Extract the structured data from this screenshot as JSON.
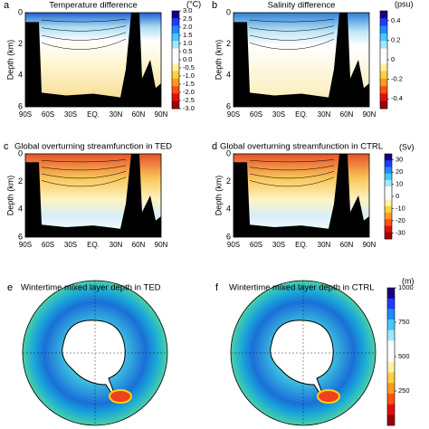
{
  "chart_data": [
    {
      "type": "section",
      "panel": "a",
      "title": "Temperature difference",
      "ylabel": "Depth (km)",
      "categories": [
        "90S",
        "60S",
        "30S",
        "EQ.",
        "30N",
        "60N",
        "90N"
      ],
      "ylim": [
        6,
        0
      ],
      "yticks": [
        0,
        2,
        4,
        6
      ],
      "colorbar": {
        "units": "(°C)",
        "lim": [
          -3,
          3
        ],
        "ticks": [
          {
            "value": 3,
            "label": "3.0"
          },
          {
            "value": 2.5,
            "label": "2.5"
          },
          {
            "value": 2,
            "label": "2.0"
          },
          {
            "value": 1.5,
            "label": "1.5"
          },
          {
            "value": 1,
            "label": "1.0"
          },
          {
            "value": 0.5,
            "label": "0.5"
          },
          {
            "value": 0,
            "label": "0.0"
          },
          {
            "value": -0.5,
            "label": "-0.5"
          },
          {
            "value": -1,
            "label": "-1.0"
          },
          {
            "value": -1.5,
            "label": "-1.5"
          },
          {
            "value": -2,
            "label": "-2.0"
          },
          {
            "value": -2.5,
            "label": "-2.5"
          },
          {
            "value": -3,
            "label": "-3.0"
          }
        ]
      }
    },
    {
      "type": "section",
      "panel": "b",
      "title": "Salinity difference",
      "ylabel": "Depth (km)",
      "categories": [
        "90S",
        "60S",
        "30S",
        "EQ.",
        "30N",
        "60N",
        "90N"
      ],
      "ylim": [
        6,
        0
      ],
      "yticks": [
        0,
        2,
        4,
        6
      ],
      "colorbar": {
        "units": "(psu)",
        "lim": [
          -0.5,
          0.5
        ],
        "ticks": [
          0.4,
          0.2,
          0,
          -0.2,
          -0.4
        ]
      }
    },
    {
      "type": "section",
      "panel": "c",
      "title": "Global overturning streamfunction in TED",
      "ylabel": "Depth (km)",
      "categories": [
        "90S",
        "60S",
        "30S",
        "EQ.",
        "30N",
        "60N",
        "90N"
      ],
      "ylim": [
        6,
        0
      ],
      "yticks": [
        0,
        2,
        4,
        6
      ]
    },
    {
      "type": "section",
      "panel": "d",
      "title": "Global overturning streamfunction in CTRL",
      "ylabel": "Depth (km)",
      "categories": [
        "90S",
        "60S",
        "30S",
        "EQ.",
        "30N",
        "60N",
        "90N"
      ],
      "ylim": [
        6,
        0
      ],
      "yticks": [
        0,
        2,
        4,
        6
      ],
      "colorbar": {
        "units": "(Sv)",
        "lim": [
          -35,
          35
        ],
        "ticks": [
          30,
          20,
          10,
          0,
          -10,
          -20,
          -30
        ]
      }
    },
    {
      "type": "map",
      "panel": "e",
      "title": "Wintertime mixed layer depth in TED"
    },
    {
      "type": "map",
      "panel": "f",
      "title": "Wintertime mixed layer depth in CTRL",
      "colorbar": {
        "units": "(m)",
        "lim": [
          0,
          1000
        ],
        "ticks": [
          1000,
          750,
          500,
          250
        ]
      }
    }
  ]
}
